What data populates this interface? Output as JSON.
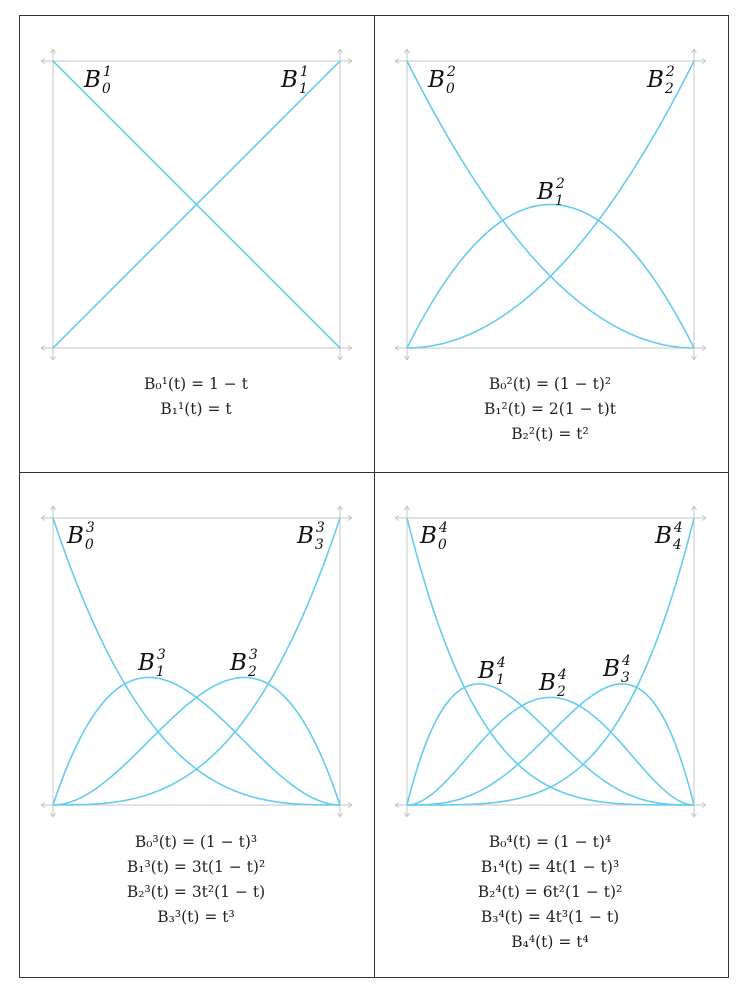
{
  "curve_color": "#66ccee",
  "axis_color": "#c4c4c4",
  "border_color": "#333333",
  "panels": [
    {
      "degree": 1,
      "curve_labels": [
        {
          "base": "B",
          "index": "0",
          "power": "1"
        },
        {
          "base": "B",
          "index": "1",
          "power": "1"
        }
      ],
      "equations": [
        "B₀¹(t) = 1 − t",
        "B₁¹(t) = t"
      ]
    },
    {
      "degree": 2,
      "curve_labels": [
        {
          "base": "B",
          "index": "0",
          "power": "2"
        },
        {
          "base": "B",
          "index": "1",
          "power": "2"
        },
        {
          "base": "B",
          "index": "2",
          "power": "2"
        }
      ],
      "equations": [
        "B₀²(t) = (1 − t)²",
        "B₁²(t) = 2(1 − t)t",
        "B₂²(t) = t²"
      ]
    },
    {
      "degree": 3,
      "curve_labels": [
        {
          "base": "B",
          "index": "0",
          "power": "3"
        },
        {
          "base": "B",
          "index": "1",
          "power": "3"
        },
        {
          "base": "B",
          "index": "2",
          "power": "3"
        },
        {
          "base": "B",
          "index": "3",
          "power": "3"
        }
      ],
      "equations": [
        "B₀³(t) = (1 − t)³",
        "B₁³(t) = 3t(1 − t)²",
        "B₂³(t) = 3t²(1 − t)",
        "B₃³(t) = t³"
      ]
    },
    {
      "degree": 4,
      "curve_labels": [
        {
          "base": "B",
          "index": "0",
          "power": "4"
        },
        {
          "base": "B",
          "index": "1",
          "power": "4"
        },
        {
          "base": "B",
          "index": "2",
          "power": "4"
        },
        {
          "base": "B",
          "index": "3",
          "power": "4"
        },
        {
          "base": "B",
          "index": "4",
          "power": "4"
        }
      ],
      "equations": [
        "B₀⁴(t) = (1 − t)⁴",
        "B₁⁴(t) = 4t(1 − t)³",
        "B₂⁴(t) = 6t²(1 − t)²",
        "B₃⁴(t) = 4t³(1 − t)",
        "B₄⁴(t) = t⁴"
      ]
    }
  ]
}
